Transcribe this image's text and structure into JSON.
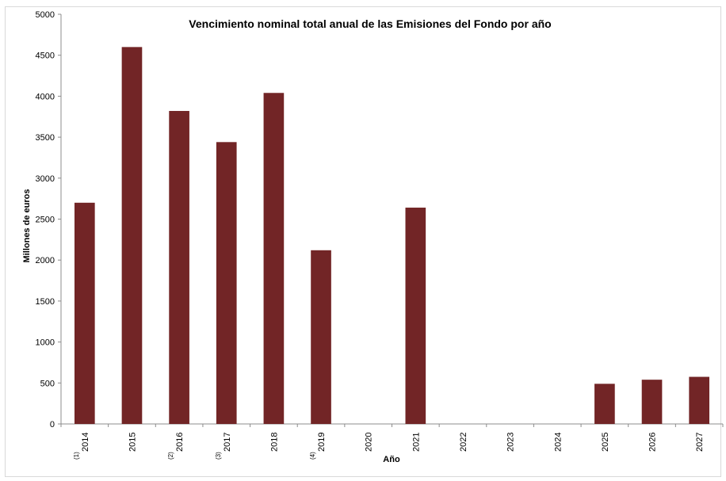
{
  "chart_data": {
    "type": "bar",
    "title": "Vencimiento nominal total anual de las Emisiones del Fondo por año",
    "xlabel": "Año",
    "ylabel": "Millones de euros",
    "ylim": [
      0,
      5000
    ],
    "yticks": [
      0,
      500,
      1000,
      1500,
      2000,
      2500,
      3000,
      3500,
      4000,
      4500,
      5000
    ],
    "categories": [
      "2014",
      "2015",
      "2016",
      "2017",
      "2018",
      "2019",
      "2020",
      "2021",
      "2022",
      "2023",
      "2024",
      "2025",
      "2026",
      "2027"
    ],
    "category_notes": [
      "(1)",
      "",
      "(2)",
      "(3)",
      "",
      "(4)",
      "",
      "",
      "",
      "",
      "",
      "",
      "",
      ""
    ],
    "values": [
      2700,
      4600,
      3820,
      3440,
      4040,
      2120,
      0,
      2640,
      0,
      0,
      0,
      490,
      540,
      575
    ],
    "bar_color": "#722526",
    "grid": false,
    "legend": "none"
  }
}
